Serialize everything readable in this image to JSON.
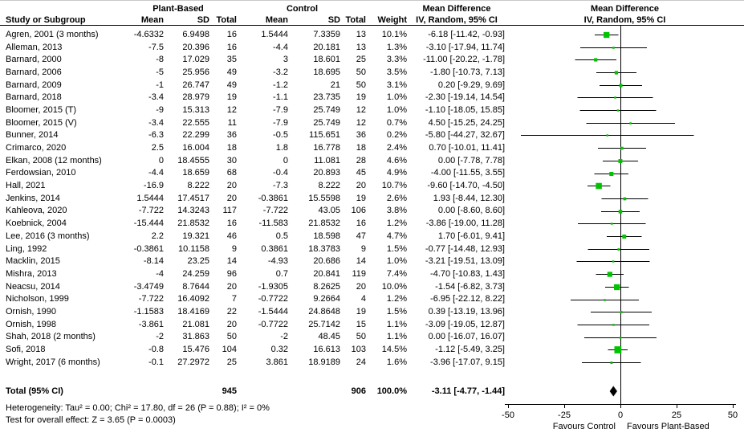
{
  "chart_data": {
    "type": "forest",
    "header": {
      "col_study": "Study or Subgroup",
      "group1": "Plant-Based",
      "group2": "Control",
      "col_mean": "Mean",
      "col_sd": "SD",
      "col_total": "Total",
      "col_weight": "Weight",
      "md_title": "Mean Difference",
      "md_sub": "IV, Random, 95% CI",
      "plot_title": "Mean Difference",
      "plot_sub": "IV, Random, 95% CI"
    },
    "studies": [
      {
        "label": "Agren, 2001 (3 months)",
        "pb_mean": "-4.6332",
        "pb_sd": "6.9498",
        "pb_n": "16",
        "c_mean": "1.5444",
        "c_sd": "7.3359",
        "c_n": "13",
        "weight": "10.1%",
        "md": "-6.18 [-11.42, -0.93]",
        "est": -6.18,
        "lo": -11.42,
        "hi": -0.93
      },
      {
        "label": "Alleman, 2013",
        "pb_mean": "-7.5",
        "pb_sd": "20.396",
        "pb_n": "16",
        "c_mean": "-4.4",
        "c_sd": "20.181",
        "c_n": "13",
        "weight": "1.3%",
        "md": "-3.10 [-17.94, 11.74]",
        "est": -3.1,
        "lo": -17.94,
        "hi": 11.74
      },
      {
        "label": "Barnard, 2000",
        "pb_mean": "-8",
        "pb_sd": "17.029",
        "pb_n": "35",
        "c_mean": "3",
        "c_sd": "18.601",
        "c_n": "25",
        "weight": "3.3%",
        "md": "-11.00 [-20.22, -1.78]",
        "est": -11.0,
        "lo": -20.22,
        "hi": -1.78
      },
      {
        "label": "Barnard, 2006",
        "pb_mean": "-5",
        "pb_sd": "25.956",
        "pb_n": "49",
        "c_mean": "-3.2",
        "c_sd": "18.695",
        "c_n": "50",
        "weight": "3.5%",
        "md": "-1.80 [-10.73, 7.13]",
        "est": -1.8,
        "lo": -10.73,
        "hi": 7.13
      },
      {
        "label": "Barnard, 2009",
        "pb_mean": "-1",
        "pb_sd": "26.747",
        "pb_n": "49",
        "c_mean": "-1.2",
        "c_sd": "21",
        "c_n": "50",
        "weight": "3.1%",
        "md": "0.20 [-9.29, 9.69]",
        "est": 0.2,
        "lo": -9.29,
        "hi": 9.69
      },
      {
        "label": "Barnard, 2018",
        "pb_mean": "-3.4",
        "pb_sd": "28.979",
        "pb_n": "19",
        "c_mean": "-1.1",
        "c_sd": "23.735",
        "c_n": "19",
        "weight": "1.0%",
        "md": "-2.30 [-19.14, 14.54]",
        "est": -2.3,
        "lo": -19.14,
        "hi": 14.54
      },
      {
        "label": "Bloomer, 2015 (T)",
        "pb_mean": "-9",
        "pb_sd": "15.313",
        "pb_n": "12",
        "c_mean": "-7.9",
        "c_sd": "25.749",
        "c_n": "12",
        "weight": "1.0%",
        "md": "-1.10 [-18.05, 15.85]",
        "est": -1.1,
        "lo": -18.05,
        "hi": 15.85
      },
      {
        "label": "Bloomer, 2015 (V)",
        "pb_mean": "-3.4",
        "pb_sd": "22.555",
        "pb_n": "11",
        "c_mean": "-7.9",
        "c_sd": "25.749",
        "c_n": "12",
        "weight": "0.7%",
        "md": "4.50 [-15.25, 24.25]",
        "est": 4.5,
        "lo": -15.25,
        "hi": 24.25
      },
      {
        "label": "Bunner, 2014",
        "pb_mean": "-6.3",
        "pb_sd": "22.299",
        "pb_n": "36",
        "c_mean": "-0.5",
        "c_sd": "115.651",
        "c_n": "36",
        "weight": "0.2%",
        "md": "-5.80 [-44.27, 32.67]",
        "est": -5.8,
        "lo": -44.27,
        "hi": 32.67
      },
      {
        "label": "Crimarco, 2020",
        "pb_mean": "2.5",
        "pb_sd": "16.004",
        "pb_n": "18",
        "c_mean": "1.8",
        "c_sd": "16.778",
        "c_n": "18",
        "weight": "2.4%",
        "md": "0.70 [-10.01, 11.41]",
        "est": 0.7,
        "lo": -10.01,
        "hi": 11.41
      },
      {
        "label": "Elkan, 2008 (12 months)",
        "pb_mean": "0",
        "pb_sd": "18.4555",
        "pb_n": "30",
        "c_mean": "0",
        "c_sd": "11.081",
        "c_n": "28",
        "weight": "4.6%",
        "md": "0.00 [-7.78, 7.78]",
        "est": 0.0,
        "lo": -7.78,
        "hi": 7.78
      },
      {
        "label": "Ferdowsian, 2010",
        "pb_mean": "-4.4",
        "pb_sd": "18.659",
        "pb_n": "68",
        "c_mean": "-0.4",
        "c_sd": "20.893",
        "c_n": "45",
        "weight": "4.9%",
        "md": "-4.00 [-11.55, 3.55]",
        "est": -4.0,
        "lo": -11.55,
        "hi": 3.55
      },
      {
        "label": "Hall, 2021",
        "pb_mean": "-16.9",
        "pb_sd": "8.222",
        "pb_n": "20",
        "c_mean": "-7.3",
        "c_sd": "8.222",
        "c_n": "20",
        "weight": "10.7%",
        "md": "-9.60 [-14.70, -4.50]",
        "est": -9.6,
        "lo": -14.7,
        "hi": -4.5
      },
      {
        "label": "Jenkins, 2014",
        "pb_mean": "1.5444",
        "pb_sd": "17.4517",
        "pb_n": "20",
        "c_mean": "-0.3861",
        "c_sd": "15.5598",
        "c_n": "19",
        "weight": "2.6%",
        "md": "1.93 [-8.44, 12.30]",
        "est": 1.93,
        "lo": -8.44,
        "hi": 12.3
      },
      {
        "label": "Kahleova, 2020",
        "pb_mean": "-7.722",
        "pb_sd": "14.3243",
        "pb_n": "117",
        "c_mean": "-7.722",
        "c_sd": "43.05",
        "c_n": "106",
        "weight": "3.8%",
        "md": "0.00 [-8.60, 8.60]",
        "est": 0.0,
        "lo": -8.6,
        "hi": 8.6
      },
      {
        "label": "Koebnick, 2004",
        "pb_mean": "-15.444",
        "pb_sd": "21.8532",
        "pb_n": "16",
        "c_mean": "-11.583",
        "c_sd": "21.8532",
        "c_n": "16",
        "weight": "1.2%",
        "md": "-3.86 [-19.00, 11.28]",
        "est": -3.86,
        "lo": -19.0,
        "hi": 11.28
      },
      {
        "label": "Lee, 2016 (3 months)",
        "pb_mean": "2.2",
        "pb_sd": "19.321",
        "pb_n": "46",
        "c_mean": "0.5",
        "c_sd": "18.598",
        "c_n": "47",
        "weight": "4.7%",
        "md": "1.70 [-6.01, 9.41]",
        "est": 1.7,
        "lo": -6.01,
        "hi": 9.41
      },
      {
        "label": "Ling, 1992",
        "pb_mean": "-0.3861",
        "pb_sd": "10.1158",
        "pb_n": "9",
        "c_mean": "0.3861",
        "c_sd": "18.3783",
        "c_n": "9",
        "weight": "1.5%",
        "md": "-0.77 [-14.48, 12.93]",
        "est": -0.77,
        "lo": -14.48,
        "hi": 12.93
      },
      {
        "label": "Macklin, 2015",
        "pb_mean": "-8.14",
        "pb_sd": "23.25",
        "pb_n": "14",
        "c_mean": "-4.93",
        "c_sd": "20.686",
        "c_n": "14",
        "weight": "1.0%",
        "md": "-3.21 [-19.51, 13.09]",
        "est": -3.21,
        "lo": -19.51,
        "hi": 13.09
      },
      {
        "label": "Mishra, 2013",
        "pb_mean": "-4",
        "pb_sd": "24.259",
        "pb_n": "96",
        "c_mean": "0.7",
        "c_sd": "20.841",
        "c_n": "119",
        "weight": "7.4%",
        "md": "-4.70 [-10.83, 1.43]",
        "est": -4.7,
        "lo": -10.83,
        "hi": 1.43
      },
      {
        "label": "Neacsu, 2014",
        "pb_mean": "-3.4749",
        "pb_sd": "8.7644",
        "pb_n": "20",
        "c_mean": "-1.9305",
        "c_sd": "8.2625",
        "c_n": "20",
        "weight": "10.0%",
        "md": "-1.54 [-6.82, 3.73]",
        "est": -1.54,
        "lo": -6.82,
        "hi": 3.73
      },
      {
        "label": "Nicholson, 1999",
        "pb_mean": "-7.722",
        "pb_sd": "16.4092",
        "pb_n": "7",
        "c_mean": "-0.7722",
        "c_sd": "9.2664",
        "c_n": "4",
        "weight": "1.2%",
        "md": "-6.95 [-22.12, 8.22]",
        "est": -6.95,
        "lo": -22.12,
        "hi": 8.22
      },
      {
        "label": "Ornish, 1990",
        "pb_mean": "-1.1583",
        "pb_sd": "18.4169",
        "pb_n": "22",
        "c_mean": "-1.5444",
        "c_sd": "24.8648",
        "c_n": "19",
        "weight": "1.5%",
        "md": "0.39 [-13.19, 13.96]",
        "est": 0.39,
        "lo": -13.19,
        "hi": 13.96
      },
      {
        "label": "Ornish, 1998",
        "pb_mean": "-3.861",
        "pb_sd": "21.081",
        "pb_n": "20",
        "c_mean": "-0.7722",
        "c_sd": "25.7142",
        "c_n": "15",
        "weight": "1.1%",
        "md": "-3.09 [-19.05, 12.87]",
        "est": -3.09,
        "lo": -19.05,
        "hi": 12.87
      },
      {
        "label": "Shah, 2018 (2 months)",
        "pb_mean": "-2",
        "pb_sd": "31.863",
        "pb_n": "50",
        "c_mean": "-2",
        "c_sd": "48.45",
        "c_n": "50",
        "weight": "1.1%",
        "md": "0.00 [-16.07, 16.07]",
        "est": 0.0,
        "lo": -16.07,
        "hi": 16.07
      },
      {
        "label": "Sofi, 2018",
        "pb_mean": "-0.8",
        "pb_sd": "15.476",
        "pb_n": "104",
        "c_mean": "0.32",
        "c_sd": "16.613",
        "c_n": "103",
        "weight": "14.5%",
        "md": "-1.12 [-5.49, 3.25]",
        "est": -1.12,
        "lo": -5.49,
        "hi": 3.25
      },
      {
        "label": "Wright, 2017 (6 months)",
        "pb_mean": "-0.1",
        "pb_sd": "27.2972",
        "pb_n": "25",
        "c_mean": "3.861",
        "c_sd": "18.9189",
        "c_n": "24",
        "weight": "1.6%",
        "md": "-3.96 [-17.07, 9.15]",
        "est": -3.96,
        "lo": -17.07,
        "hi": 9.15
      }
    ],
    "total": {
      "label": "Total (95% CI)",
      "pb_n": "945",
      "c_n": "906",
      "weight": "100.0%",
      "md": "-3.11 [-4.77, -1.44]",
      "est": -3.11,
      "lo": -4.77,
      "hi": -1.44
    },
    "footnotes": {
      "heterogeneity": "Heterogeneity: Tau² = 0.00; Chi² = 17.80, df = 26 (P = 0.88); I² = 0%",
      "overall_effect": "Test for overall effect: Z = 3.65 (P = 0.0003)"
    },
    "xlim": [
      -50,
      50
    ],
    "x_ticks": [
      -50,
      -25,
      0,
      25,
      50
    ],
    "x_left_label": "Favours Control",
    "x_right_label": "Favours Plant-Based",
    "colors": {
      "marker": "#00c400",
      "line": "#000000",
      "diamond": "#000000"
    }
  }
}
